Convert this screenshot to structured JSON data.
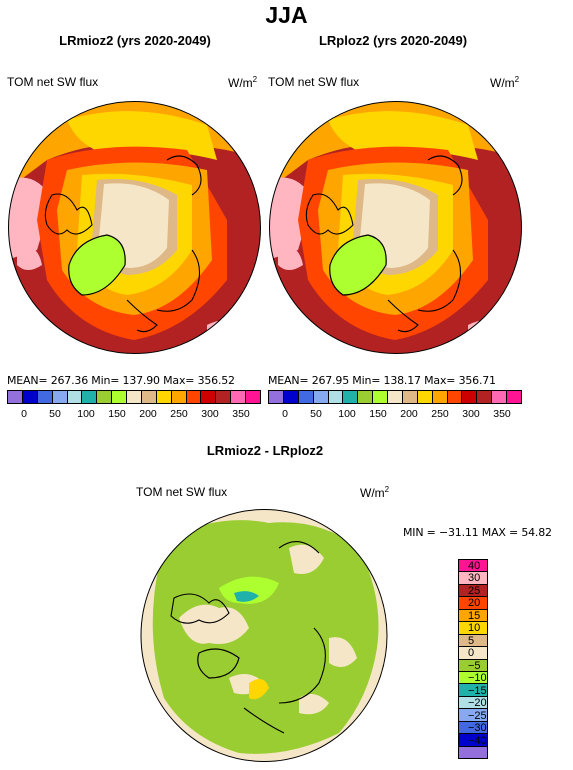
{
  "page_title": "JJA",
  "panels": [
    {
      "title": "LRmioz2 (yrs 2020-2049)",
      "variable": "TOM net SW flux",
      "units_base": "W/m",
      "units_exp": "2",
      "stats": "MEAN=  267.36   Min=  137.90   Max=  356.52"
    },
    {
      "title": "LRploz2 (yrs 2020-2049)",
      "variable": "TOM net SW flux",
      "units_base": "W/m",
      "units_exp": "2",
      "stats": "MEAN=  267.95   Min=  138.17   Max=  356.71"
    }
  ],
  "top_colorbar": {
    "colors": [
      "#9370db",
      "#0000cd",
      "#4169e1",
      "#87a9f0",
      "#b0e0e6",
      "#20b2aa",
      "#9acd32",
      "#adff2f",
      "#f5e6c8",
      "#deb887",
      "#ffd700",
      "#ffa500",
      "#ff4500",
      "#cc0000",
      "#b22222",
      "#ff69b4",
      "#ff1493"
    ],
    "ticks": [
      "0",
      "50",
      "100",
      "150",
      "200",
      "250",
      "300",
      "350"
    ],
    "ticks_left": [
      "0",
      "50",
      "100",
      "150",
      "200",
      "250",
      "300",
      "350"
    ]
  },
  "diff": {
    "title": "LRmioz2 - LRploz2",
    "variable": "TOM net SW flux",
    "units_base": "W/m",
    "units_exp": "2",
    "stats": "MIN = −31.11  MAX =   54.82",
    "colorbar": {
      "colors": [
        "#ff1493",
        "#ffb6c1",
        "#b22222",
        "#ff4500",
        "#ffa500",
        "#ffd700",
        "#deb887",
        "#f5e6c8",
        "#9acd32",
        "#adff2f",
        "#20b2aa",
        "#b0e0e6",
        "#87a9f0",
        "#4169e1",
        "#0000cd",
        "#9370db"
      ],
      "ticks": [
        "40",
        "30",
        "25",
        "20",
        "15",
        "10",
        "5",
        "0",
        "−5",
        "−10",
        "−15",
        "−20",
        "−25",
        "−30",
        "−40"
      ]
    }
  }
}
